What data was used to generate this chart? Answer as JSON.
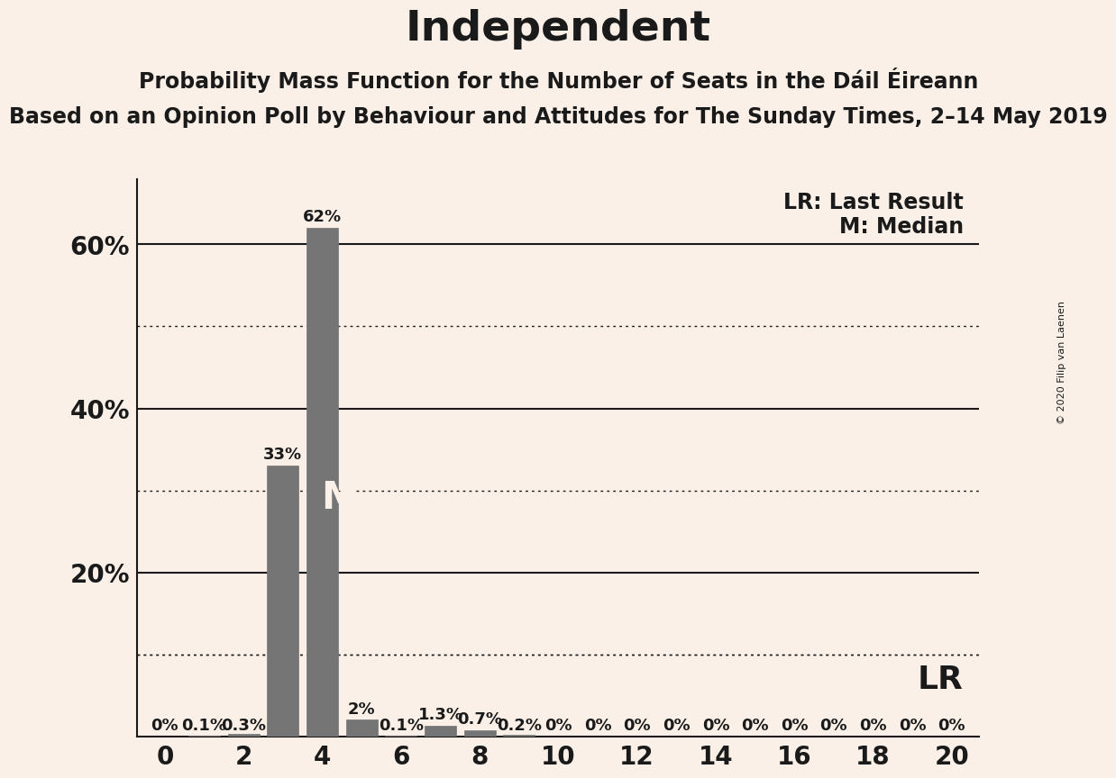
{
  "title": "Independent",
  "subtitle": "Probability Mass Function for the Number of Seats in the Dáil Éireann",
  "sub_subtitle": "Based on an Opinion Poll by Behaviour and Attitudes for The Sunday Times, 2–14 May 2019",
  "copyright": "© 2020 Filip van Laenen",
  "legend_lr": "LR: Last Result",
  "legend_m": "M: Median",
  "background_color": "#FAF0E8",
  "bar_color": "#757575",
  "text_color": "#1a1a1a",
  "grid_color": "#1a1a1a",
  "seats": [
    0,
    1,
    2,
    3,
    4,
    5,
    6,
    7,
    8,
    9,
    10,
    11,
    12,
    13,
    14,
    15,
    16,
    17,
    18,
    19,
    20
  ],
  "probabilities": [
    0.0,
    0.001,
    0.003,
    0.33,
    0.62,
    0.02,
    0.001,
    0.013,
    0.007,
    0.002,
    0.0,
    0.0,
    0.0,
    0.0,
    0.0,
    0.0,
    0.0,
    0.0,
    0.0,
    0.0,
    0.0
  ],
  "labels": [
    "0%",
    "0.1%",
    "0.3%",
    "33%",
    "62%",
    "2%",
    "0.1%",
    "1.3%",
    "0.7%",
    "0.2%",
    "0%",
    "0%",
    "0%",
    "0%",
    "0%",
    "0%",
    "0%",
    "0%",
    "0%",
    "0%",
    "0%"
  ],
  "median_seat": 4,
  "lr_level": 0.1,
  "ylim": [
    0,
    0.68
  ],
  "ytick_vals": [
    0.2,
    0.4,
    0.6
  ],
  "ytick_labels": [
    "20%",
    "40%",
    "60%"
  ],
  "dotted_lines": [
    0.1,
    0.3,
    0.5
  ],
  "solid_lines": [
    0.2,
    0.4,
    0.6
  ],
  "title_fontsize": 34,
  "subtitle_fontsize": 17,
  "sub_subtitle_fontsize": 17,
  "bar_label_fontsize": 13,
  "axis_tick_fontsize": 20,
  "legend_fontsize": 17,
  "M_fontsize": 30,
  "lr_fontsize": 26
}
